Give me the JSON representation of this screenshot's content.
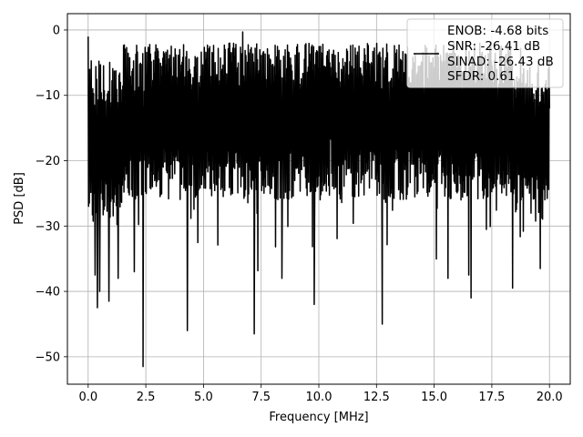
{
  "chart_data": {
    "type": "line",
    "xlabel": "Frequency [MHz]",
    "ylabel": "PSD [dB]",
    "xlim": [
      -0.9,
      20.9
    ],
    "ylim": [
      -54.2,
      2.5
    ],
    "x_ticks": [
      0.0,
      2.5,
      5.0,
      7.5,
      10.0,
      12.5,
      15.0,
      17.5,
      20.0
    ],
    "x_tick_labels": [
      "0.0",
      "2.5",
      "5.0",
      "7.5",
      "10.0",
      "12.5",
      "15.0",
      "17.5",
      "20.0"
    ],
    "y_ticks": [
      0,
      -10,
      -20,
      -30,
      -40,
      -50
    ],
    "y_tick_labels": [
      "0",
      "−10",
      "−20",
      "−30",
      "−40",
      "−50"
    ],
    "grid": true,
    "legend": {
      "placement": "top-right",
      "lines": [
        "ENOB: -4.68 bits",
        "SNR: -26.41 dB",
        "SINAD: -26.43 dB",
        "SFDR: 0.61"
      ]
    },
    "series": [
      {
        "color": "#000000",
        "x_start": 0.0,
        "x_end": 20.0,
        "n_points": 1200,
        "upper_envelope_db": -7,
        "lower_envelope_db": -22,
        "values_points": [
          [
            0.0,
            -1.0
          ],
          [
            0.03,
            -18.0
          ],
          [
            0.08,
            -12.0
          ],
          [
            0.3,
            -37.5
          ],
          [
            0.4,
            -42.5
          ],
          [
            0.5,
            -40.0
          ],
          [
            0.9,
            -41.5
          ],
          [
            1.3,
            -38.0
          ],
          [
            2.0,
            -37.0
          ],
          [
            2.38,
            -51.5
          ],
          [
            4.3,
            -46.0
          ],
          [
            6.7,
            -0.3
          ],
          [
            7.2,
            -46.5
          ],
          [
            8.4,
            -38.0
          ],
          [
            9.8,
            -42.0
          ],
          [
            12.75,
            -45.0
          ],
          [
            15.6,
            -38.0
          ],
          [
            16.5,
            -37.5
          ],
          [
            16.6,
            -41.0
          ],
          [
            18.4,
            -39.5
          ],
          [
            19.6,
            -36.5
          ],
          [
            20.0,
            -12.0
          ]
        ]
      }
    ]
  }
}
